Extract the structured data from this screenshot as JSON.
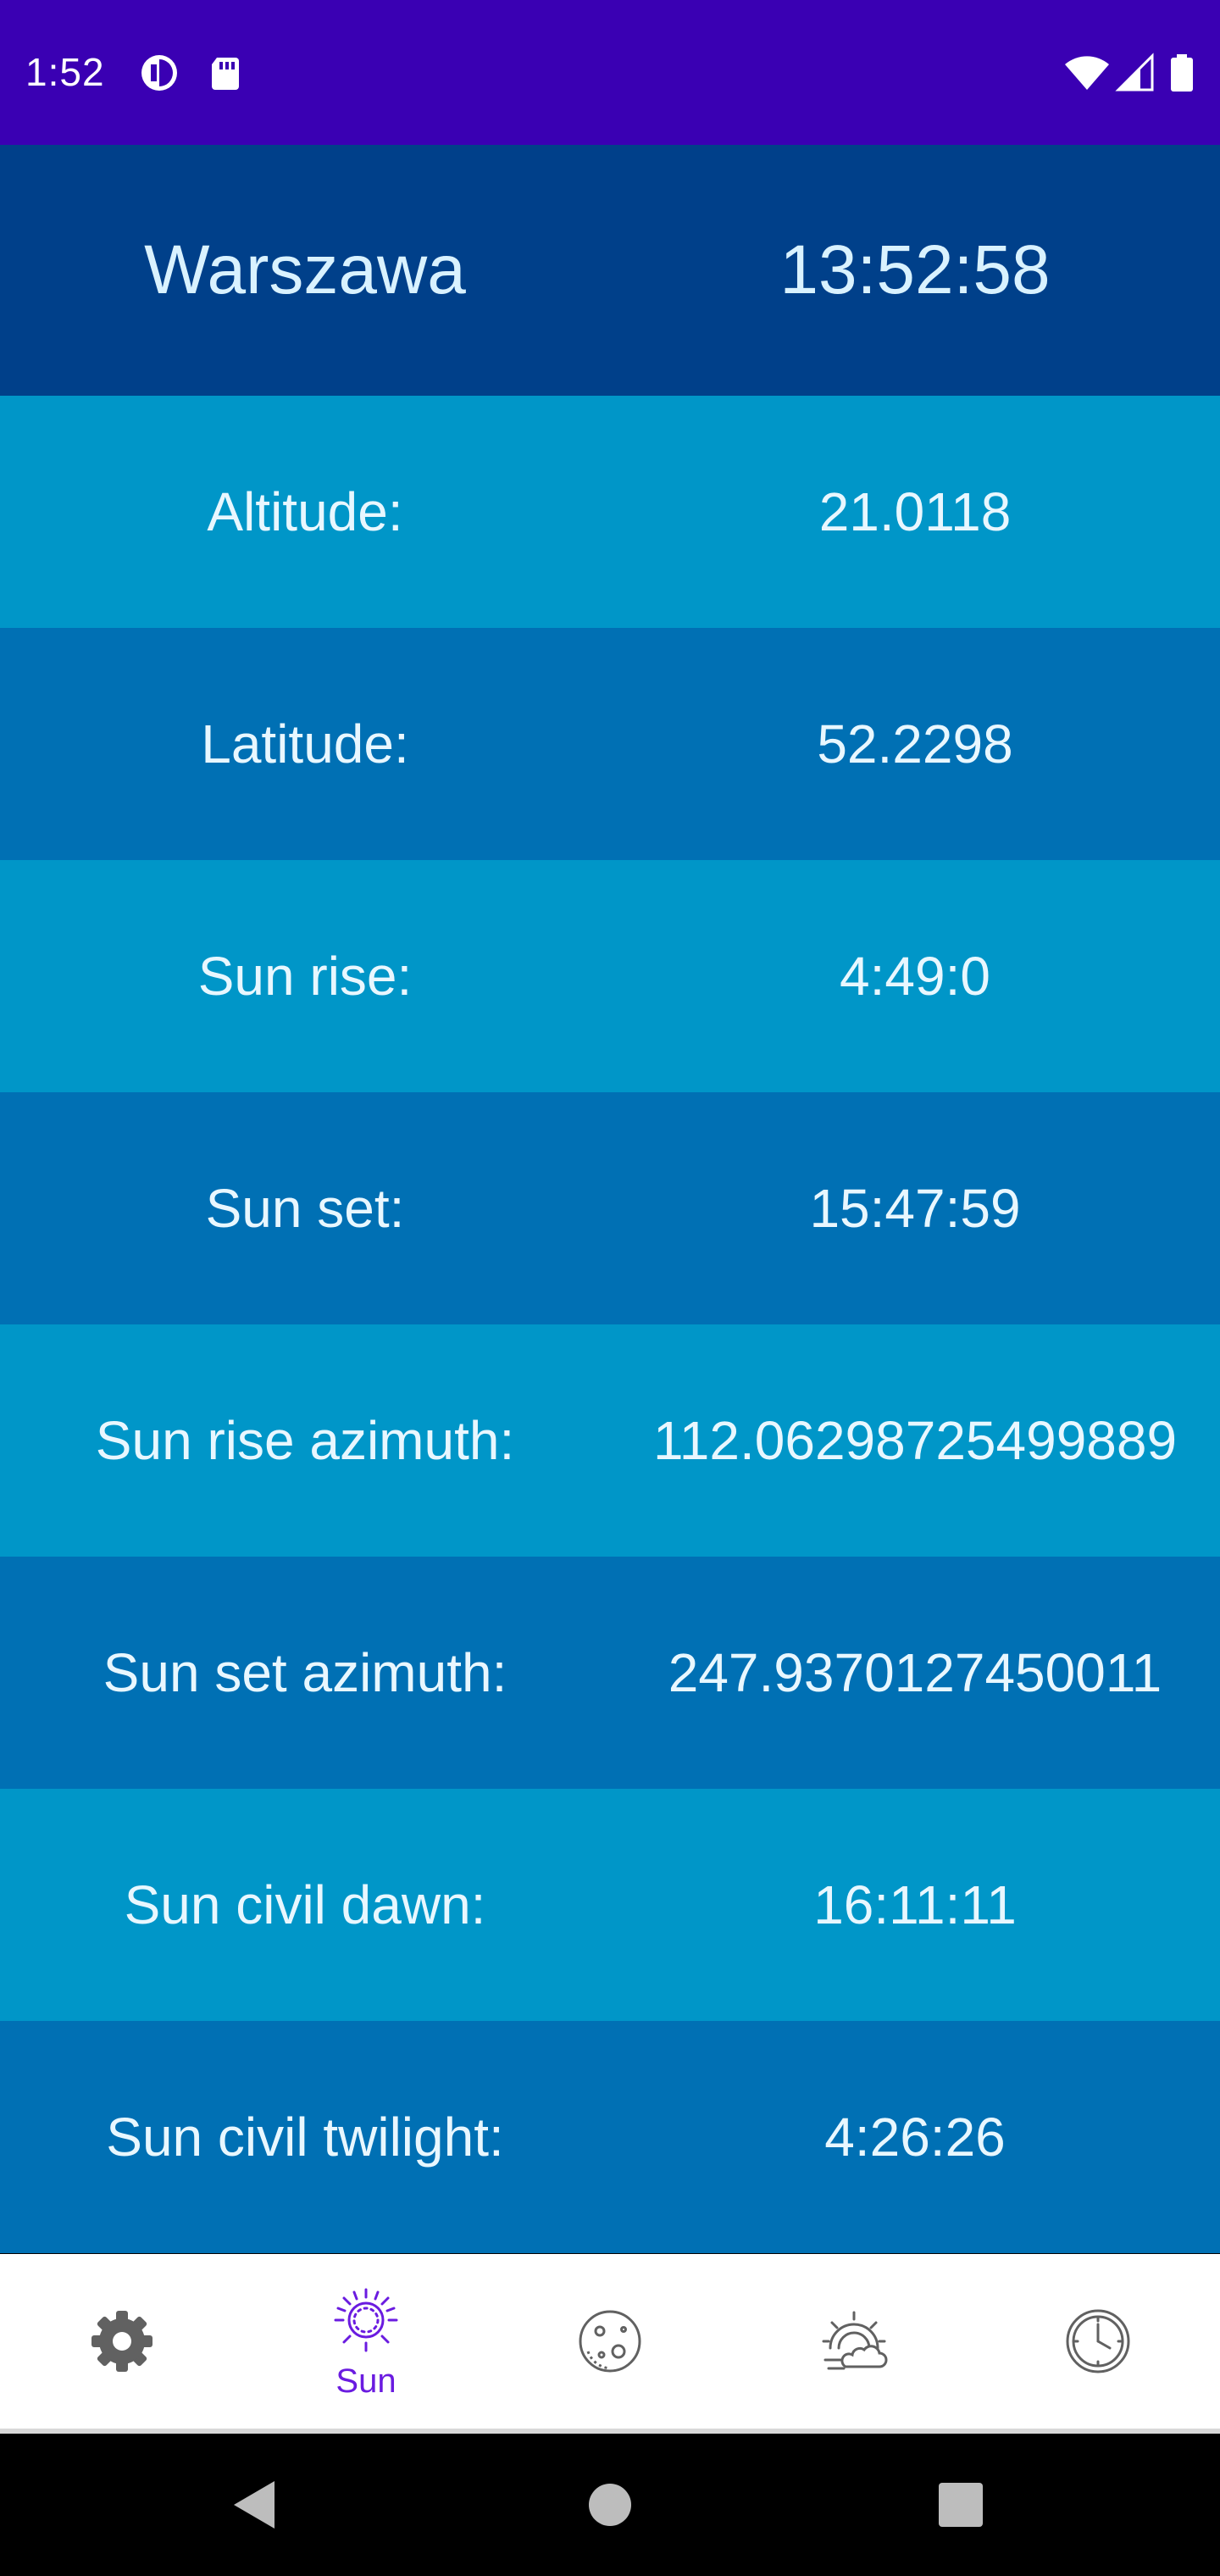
{
  "status_bar": {
    "time": "1:52",
    "icons": [
      "notification-app-icon",
      "sd-card-icon",
      "wifi-icon",
      "cell-signal-icon",
      "battery-icon"
    ],
    "background": "#3a00b3"
  },
  "header": {
    "city": "Warszawa",
    "clock": "13:52:58",
    "background": "#00408a"
  },
  "rows": [
    {
      "label": "Altitude:",
      "value": "21.0118"
    },
    {
      "label": "Latitude:",
      "value": "52.2298"
    },
    {
      "label": "Sun rise:",
      "value": "4:49:0"
    },
    {
      "label": "Sun set:",
      "value": "15:47:59"
    },
    {
      "label": "Sun rise azimuth:",
      "value": "112.06298725499889"
    },
    {
      "label": "Sun set azimuth:",
      "value": "247.9370127450011"
    },
    {
      "label": "Sun civil dawn:",
      "value": "16:11:11"
    },
    {
      "label": "Sun civil twilight:",
      "value": "4:26:26"
    }
  ],
  "row_colors": {
    "light": "#0096c8",
    "dark": "#0070b4"
  },
  "bottom_nav": {
    "items": [
      {
        "icon": "gear-icon",
        "label": ""
      },
      {
        "icon": "sun-icon",
        "label": "Sun",
        "selected": true
      },
      {
        "icon": "moon-icon",
        "label": ""
      },
      {
        "icon": "weather-icon",
        "label": ""
      },
      {
        "icon": "clock-icon",
        "label": ""
      }
    ],
    "accent": "#6a1be0"
  },
  "android_nav": {
    "icons": [
      "back-icon",
      "home-icon",
      "recents-icon"
    ]
  }
}
